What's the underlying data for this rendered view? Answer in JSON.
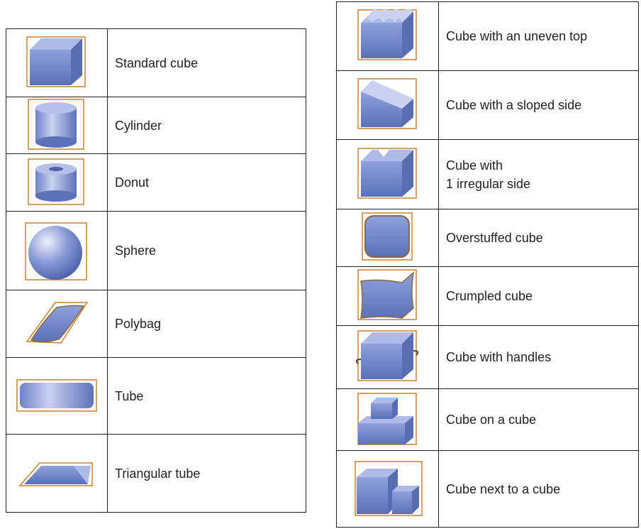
{
  "left_table": {
    "rows": [
      {
        "label": "Standard cube"
      },
      {
        "label": "Cylinder"
      },
      {
        "label": "Donut"
      },
      {
        "label": "Sphere"
      },
      {
        "label": "Polybag"
      },
      {
        "label": "Tube"
      },
      {
        "label": "Triangular tube"
      }
    ]
  },
  "right_table": {
    "rows": [
      {
        "label": "Cube with an uneven top"
      },
      {
        "label": "Cube with a sloped side"
      },
      {
        "label": [
          "Cube with",
          "1 irregular side"
        ]
      },
      {
        "label": "Overstuffed cube"
      },
      {
        "label": "Crumpled cube"
      },
      {
        "label": "Cube with handles"
      },
      {
        "label": "Cube on a cube"
      },
      {
        "label": "Cube next to a cube"
      }
    ]
  }
}
